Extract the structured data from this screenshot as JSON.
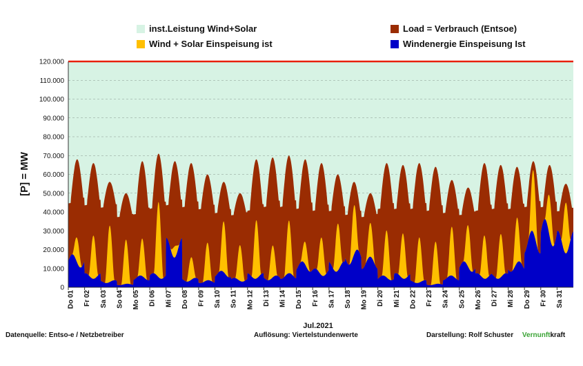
{
  "legend": {
    "installed": "inst.Leistung Wind+Solar",
    "load": "Load =  Verbrauch (Entsoe)",
    "wind_solar": "Wind + Solar Einspeisung ist",
    "wind": "Windenergie Einspeisung Ist"
  },
  "colors": {
    "installed": "#d7f3e4",
    "load": "#9a2c02",
    "wind_solar": "#ffbf00",
    "wind": "#0000c8",
    "installed_line": "#e8200b"
  },
  "footer": {
    "source": "Datenquelle:  Entso-e  / Netzbetreiber",
    "resolution": "Auflösung: Viertelstundenwerte",
    "author": "Darstellung:  Rolf Schuster",
    "brand_green": "Vernunft",
    "brand_rest": "kraft"
  },
  "chart_data": {
    "type": "area",
    "title": "",
    "xlabel": "Jul.2021",
    "ylabel": "[P] = MW",
    "ylim": [
      0,
      120000
    ],
    "y_ticks": [
      "0",
      "10.000",
      "20.000",
      "30.000",
      "40.000",
      "50.000",
      "60.000",
      "70.000",
      "80.000",
      "90.000",
      "100.000",
      "110.000",
      "120.000"
    ],
    "grid": true,
    "x_ticks": [
      "Do 01",
      "Fr 02",
      "Sa 03",
      "So 04",
      "Mo 05",
      "Di 06",
      "Mi 07",
      "Do 08",
      "Fr 09",
      "Sa 10",
      "So 11",
      "Mo 12",
      "Di 13",
      "Mi 14",
      "Do 15",
      "Fr 16",
      "Sa 17",
      "So 18",
      "Mo 19",
      "Di 20",
      "Mi 21",
      "Do 22",
      "Fr 23",
      "Sa 24",
      "So 25",
      "Mo 26",
      "Di 27",
      "Mi 28",
      "Do 29",
      "Fr 30",
      "Sa 31"
    ],
    "installed_capacity": 120000,
    "days": [
      "Do 01",
      "Fr 02",
      "Sa 03",
      "So 04",
      "Mo 05",
      "Di 06",
      "Mi 07",
      "Do 08",
      "Fr 09",
      "Sa 10",
      "So 11",
      "Mo 12",
      "Di 13",
      "Mi 14",
      "Do 15",
      "Fr 16",
      "Sa 17",
      "So 18",
      "Mo 19",
      "Di 20",
      "Mi 21",
      "Do 22",
      "Fr 23",
      "Sa 24",
      "So 25",
      "Mo 26",
      "Di 27",
      "Mi 28",
      "Do 29",
      "Fr 30",
      "Sa 31"
    ],
    "series": [
      {
        "name": "Load =  Verbrauch (Entsoe)",
        "daily_min": [
          44000,
          43000,
          42000,
          37000,
          38000,
          41000,
          43000,
          42000,
          41000,
          39000,
          38000,
          40000,
          42000,
          42000,
          41000,
          40000,
          40000,
          38000,
          37000,
          41000,
          41000,
          41000,
          40000,
          39000,
          38000,
          40000,
          41000,
          41000,
          42000,
          42000,
          40000
        ],
        "daily_max": [
          68000,
          66000,
          56000,
          50000,
          67000,
          71000,
          67000,
          66000,
          60000,
          56000,
          50000,
          68000,
          69000,
          70000,
          68000,
          66000,
          60000,
          56000,
          50000,
          66000,
          65000,
          66000,
          64000,
          57000,
          53000,
          66000,
          65000,
          64000,
          67000,
          65000,
          55000
        ]
      },
      {
        "name": "Wind + Solar Einspeisung ist",
        "daily_peak": [
          27000,
          29000,
          33000,
          25000,
          25000,
          46000,
          27000,
          16000,
          23000,
          34000,
          23000,
          37000,
          22000,
          34000,
          23000,
          28000,
          36000,
          42000,
          31000,
          30000,
          30000,
          27000,
          24000,
          31000,
          33000,
          29000,
          29000,
          35000,
          57000,
          50000,
          51000
        ]
      },
      {
        "name": "Windenergie Einspeisung Ist",
        "daily_avg": [
          14000,
          6000,
          3000,
          1500,
          5000,
          6000,
          21000,
          4000,
          3000,
          7000,
          4000,
          6000,
          5000,
          6000,
          11000,
          8000,
          11000,
          16000,
          13000,
          5000,
          6000,
          3000,
          1500,
          5000,
          11000,
          6000,
          6000,
          11000,
          24000,
          29000,
          24000
        ]
      }
    ]
  }
}
